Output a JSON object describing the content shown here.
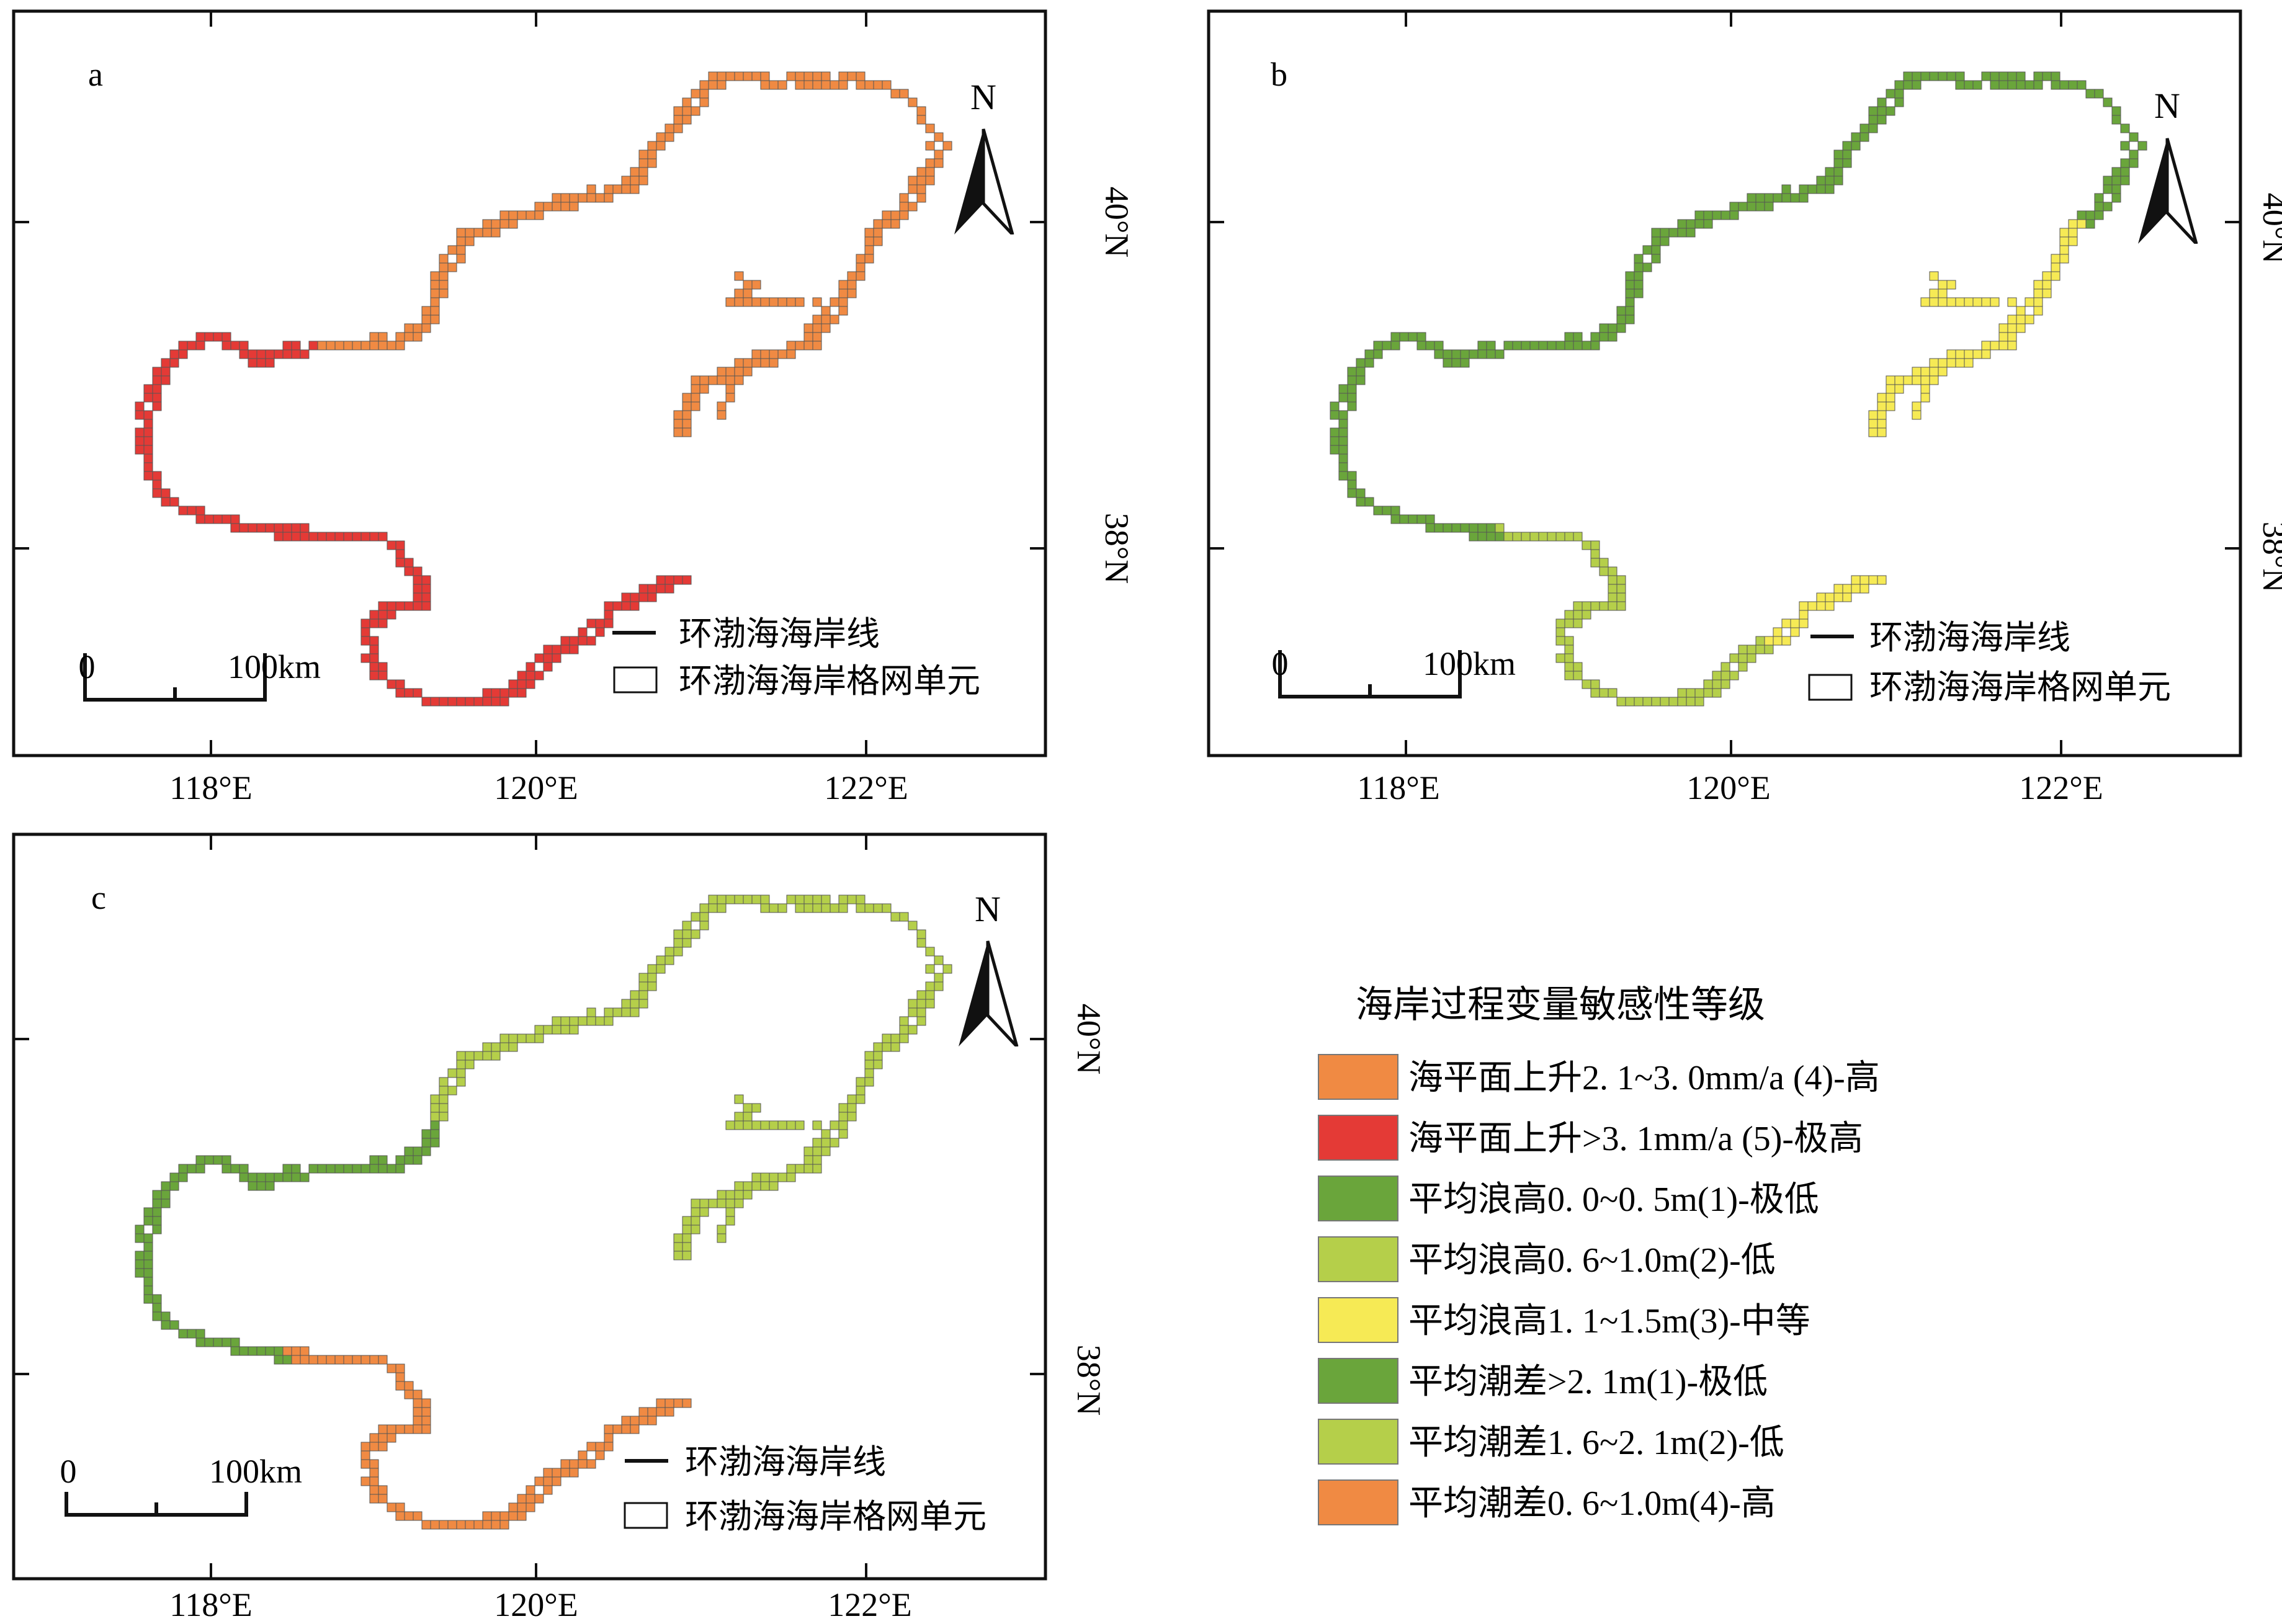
{
  "panels": [
    {
      "id": "a",
      "label": "a",
      "north_label": "N",
      "lat_ticks": [
        "40°N",
        "38°N"
      ],
      "lon_ticks": [
        "118°E",
        "120°E",
        "122°E"
      ],
      "scale": {
        "zero": "0",
        "distance": "100km"
      },
      "legend": {
        "coastline": "环渤海海岸线",
        "grid_unit": "环渤海海岸格网单元"
      },
      "segments": [
        {
          "class": "c4",
          "from": 0.0,
          "to": 0.52
        },
        {
          "class": "c5",
          "from": 0.52,
          "to": 1.0
        }
      ]
    },
    {
      "id": "b",
      "label": "b",
      "north_label": "N",
      "lat_ticks": [
        "40°N",
        "38°N"
      ],
      "lon_ticks": [
        "118°E",
        "120°E",
        "122°E"
      ],
      "scale": {
        "zero": "0",
        "distance": "100km"
      },
      "legend": {
        "coastline": "环渤海海岸线",
        "grid_unit": "环渤海海岸格网单元"
      },
      "segments": [
        {
          "class": "w3",
          "from": 0.0,
          "to": 0.14
        },
        {
          "class": "w1",
          "from": 0.14,
          "to": 0.72
        },
        {
          "class": "w2",
          "from": 0.72,
          "to": 0.94
        },
        {
          "class": "w3",
          "from": 0.94,
          "to": 1.0
        }
      ]
    },
    {
      "id": "c",
      "label": "c",
      "north_label": "N",
      "lat_ticks": [
        "40°N",
        "38°N"
      ],
      "lon_ticks": [
        "118°E",
        "120°E",
        "122°E"
      ],
      "scale": {
        "zero": "0",
        "distance": "100km"
      },
      "legend": {
        "coastline": "环渤海海岸线",
        "grid_unit": "环渤海海岸格网单元"
      },
      "segments": [
        {
          "class": "t2",
          "from": 0.0,
          "to": 0.46
        },
        {
          "class": "t1",
          "from": 0.46,
          "to": 0.71
        },
        {
          "class": "t4",
          "from": 0.71,
          "to": 1.0
        }
      ]
    }
  ],
  "legend": {
    "title": "海岸过程变量敏感性等级",
    "items": [
      {
        "key": "c4",
        "label": "海平面上升2. 1~3. 0mm/a (4)-高",
        "color": "#f08a43"
      },
      {
        "key": "c5",
        "label": "海平面上升>3. 1mm/a (5)-极高",
        "color": "#e43a36"
      },
      {
        "key": "w1",
        "label": "平均浪高0. 0~0. 5m(1)-极低",
        "color": "#6aa53b"
      },
      {
        "key": "w2",
        "label": "平均浪高0. 6~1.0m(2)-低",
        "color": "#b5cf4a"
      },
      {
        "key": "w3",
        "label": "平均浪高1. 1~1.5m(3)-中等",
        "color": "#f6ea55"
      },
      {
        "key": "t1",
        "label": "平均潮差>2. 1m(1)-极低",
        "color": "#6aa53b"
      },
      {
        "key": "t2",
        "label": "平均潮差1. 6~2. 1m(2)-低",
        "color": "#b5cf4a"
      },
      {
        "key": "t4",
        "label": "平均潮差0. 6~1.0m(4)-高",
        "color": "#f08a43"
      }
    ]
  }
}
